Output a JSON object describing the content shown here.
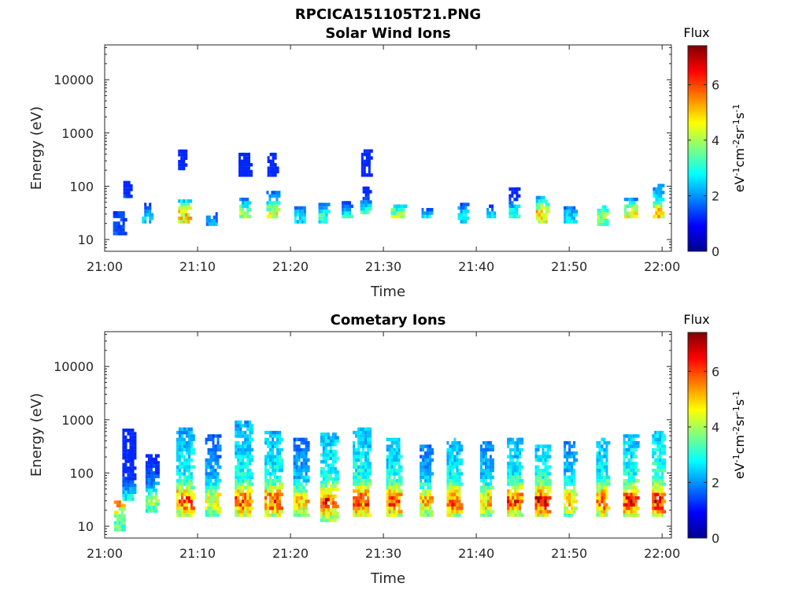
{
  "figure_title": "RPCICA151105T21.PNG",
  "chart_data": [
    {
      "type": "heatmap",
      "title": "Solar Wind Ions",
      "xlabel": "Time",
      "ylabel": "Energy (eV)",
      "x_ticks": [
        "21:00",
        "21:10",
        "21:20",
        "21:30",
        "21:40",
        "21:50",
        "22:00"
      ],
      "y_scale": "log",
      "y_ticks": [
        "10",
        "100",
        "1000",
        "10000"
      ],
      "ylim": [
        6,
        45000
      ],
      "colorbar": {
        "label": "Flux",
        "unit_html": "eV<tspan dy='-6' font-size='11'>-1</tspan><tspan dy='6'>cm</tspan><tspan dy='-6' font-size='11'>-2</tspan><tspan dy='6'>sr</tspan><tspan dy='-6' font-size='11'>-1</tspan><tspan dy='6'>s</tspan><tspan dy='-6' font-size='11'>-1</tspan>",
        "range": [
          0,
          7.4
        ],
        "ticks": [
          "0",
          "2",
          "4",
          "6"
        ]
      },
      "colormap": "jet",
      "bursts": [
        {
          "t": 1.5,
          "e": [
            12,
            30
          ],
          "f": 2.6,
          "spread": 0.6
        },
        {
          "t": 2.3,
          "e": [
            60,
            110
          ],
          "f": 2.5,
          "spread": 0.3
        },
        {
          "t": 4.5,
          "e": [
            20,
            45
          ],
          "f": 2.8,
          "spread": 0.5
        },
        {
          "t": 8.5,
          "e": [
            20,
            50
          ],
          "f": 5.5,
          "spread": 0.6
        },
        {
          "t": 8.2,
          "e": [
            200,
            450
          ],
          "f": 2.2,
          "spread": 0.3
        },
        {
          "t": 11.5,
          "e": [
            18,
            30
          ],
          "f": 2.8,
          "spread": 0.6
        },
        {
          "t": 15.0,
          "e": [
            25,
            60
          ],
          "f": 4.5,
          "spread": 0.5
        },
        {
          "t": 15.0,
          "e": [
            150,
            380
          ],
          "f": 2.0,
          "spread": 0.6
        },
        {
          "t": 18.0,
          "e": [
            25,
            80
          ],
          "f": 4.8,
          "spread": 0.6
        },
        {
          "t": 18.0,
          "e": [
            150,
            420
          ],
          "f": 2.2,
          "spread": 0.5
        },
        {
          "t": 21.0,
          "e": [
            20,
            40
          ],
          "f": 3.2,
          "spread": 0.6
        },
        {
          "t": 23.5,
          "e": [
            20,
            45
          ],
          "f": 3.6,
          "spread": 0.5
        },
        {
          "t": 26.0,
          "e": [
            25,
            50
          ],
          "f": 3.2,
          "spread": 0.5
        },
        {
          "t": 28.0,
          "e": [
            30,
            90
          ],
          "f": 3.5,
          "spread": 0.5
        },
        {
          "t": 28.0,
          "e": [
            150,
            450
          ],
          "f": 2.0,
          "spread": 0.4
        },
        {
          "t": 31.5,
          "e": [
            25,
            45
          ],
          "f": 4.2,
          "spread": 0.7
        },
        {
          "t": 34.5,
          "e": [
            25,
            35
          ],
          "f": 2.8,
          "spread": 0.4
        },
        {
          "t": 38.5,
          "e": [
            20,
            45
          ],
          "f": 3.2,
          "spread": 0.5
        },
        {
          "t": 41.5,
          "e": [
            25,
            40
          ],
          "f": 3.0,
          "spread": 0.4
        },
        {
          "t": 44.0,
          "e": [
            25,
            90
          ],
          "f": 3.2,
          "spread": 0.5
        },
        {
          "t": 47.0,
          "e": [
            20,
            60
          ],
          "f": 5.6,
          "spread": 0.6
        },
        {
          "t": 50.0,
          "e": [
            20,
            40
          ],
          "f": 3.2,
          "spread": 0.6
        },
        {
          "t": 53.5,
          "e": [
            18,
            40
          ],
          "f": 4.6,
          "spread": 0.5
        },
        {
          "t": 56.5,
          "e": [
            25,
            60
          ],
          "f": 4.8,
          "spread": 0.6
        },
        {
          "t": 59.5,
          "e": [
            25,
            110
          ],
          "f": 5.5,
          "spread": 0.5
        }
      ]
    },
    {
      "type": "heatmap",
      "title": "Cometary Ions",
      "xlabel": "Time",
      "ylabel": "Energy (eV)",
      "x_ticks": [
        "21:00",
        "21:10",
        "21:20",
        "21:30",
        "21:40",
        "21:50",
        "22:00"
      ],
      "y_scale": "log",
      "y_ticks": [
        "10",
        "100",
        "1000",
        "10000"
      ],
      "ylim": [
        6,
        45000
      ],
      "colorbar": {
        "label": "Flux",
        "unit_html": "eV<tspan dy='-6' font-size='11'>-1</tspan><tspan dy='6'>cm</tspan><tspan dy='-6' font-size='11'>-2</tspan><tspan dy='6'>sr</tspan><tspan dy='-6' font-size='11'>-1</tspan><tspan dy='6'>s</tspan><tspan dy='-6' font-size='11'>-1</tspan>",
        "range": [
          0,
          7.4
        ],
        "ticks": [
          "0",
          "2",
          "4",
          "6"
        ]
      },
      "colormap": "jet",
      "bursts": [
        {
          "t": 1.5,
          "e": [
            8,
            30
          ],
          "f": 6.8,
          "spread": 0.5
        },
        {
          "t": 2.5,
          "e": [
            30,
            600
          ],
          "f": 3.2,
          "spread": 0.6
        },
        {
          "t": 5.0,
          "e": [
            18,
            200
          ],
          "f": 4.2,
          "spread": 0.6
        },
        {
          "t": 8.5,
          "e": [
            15,
            700
          ],
          "f": 6.4,
          "spread": 0.8
        },
        {
          "t": 11.5,
          "e": [
            15,
            500
          ],
          "f": 5.2,
          "spread": 0.7
        },
        {
          "t": 14.8,
          "e": [
            15,
            900
          ],
          "f": 6.4,
          "spread": 0.8
        },
        {
          "t": 18.0,
          "e": [
            15,
            600
          ],
          "f": 6.6,
          "spread": 0.8
        },
        {
          "t": 21.0,
          "e": [
            15,
            400
          ],
          "f": 5.5,
          "spread": 0.7
        },
        {
          "t": 24.0,
          "e": [
            12,
            500
          ],
          "f": 6.8,
          "spread": 0.8
        },
        {
          "t": 27.5,
          "e": [
            15,
            700
          ],
          "f": 6.6,
          "spread": 0.8
        },
        {
          "t": 31.0,
          "e": [
            15,
            400
          ],
          "f": 6.6,
          "spread": 0.7
        },
        {
          "t": 34.5,
          "e": [
            15,
            300
          ],
          "f": 5.6,
          "spread": 0.6
        },
        {
          "t": 37.5,
          "e": [
            15,
            400
          ],
          "f": 6.6,
          "spread": 0.7
        },
        {
          "t": 41.0,
          "e": [
            15,
            350
          ],
          "f": 5.8,
          "spread": 0.6
        },
        {
          "t": 44.0,
          "e": [
            15,
            400
          ],
          "f": 6.6,
          "spread": 0.7
        },
        {
          "t": 47.0,
          "e": [
            15,
            300
          ],
          "f": 7.0,
          "spread": 0.7
        },
        {
          "t": 50.0,
          "e": [
            15,
            350
          ],
          "f": 5.8,
          "spread": 0.6
        },
        {
          "t": 53.5,
          "e": [
            15,
            400
          ],
          "f": 6.6,
          "spread": 0.6
        },
        {
          "t": 56.5,
          "e": [
            15,
            500
          ],
          "f": 6.8,
          "spread": 0.7
        },
        {
          "t": 59.5,
          "e": [
            15,
            600
          ],
          "f": 7.0,
          "spread": 0.6
        }
      ]
    }
  ]
}
